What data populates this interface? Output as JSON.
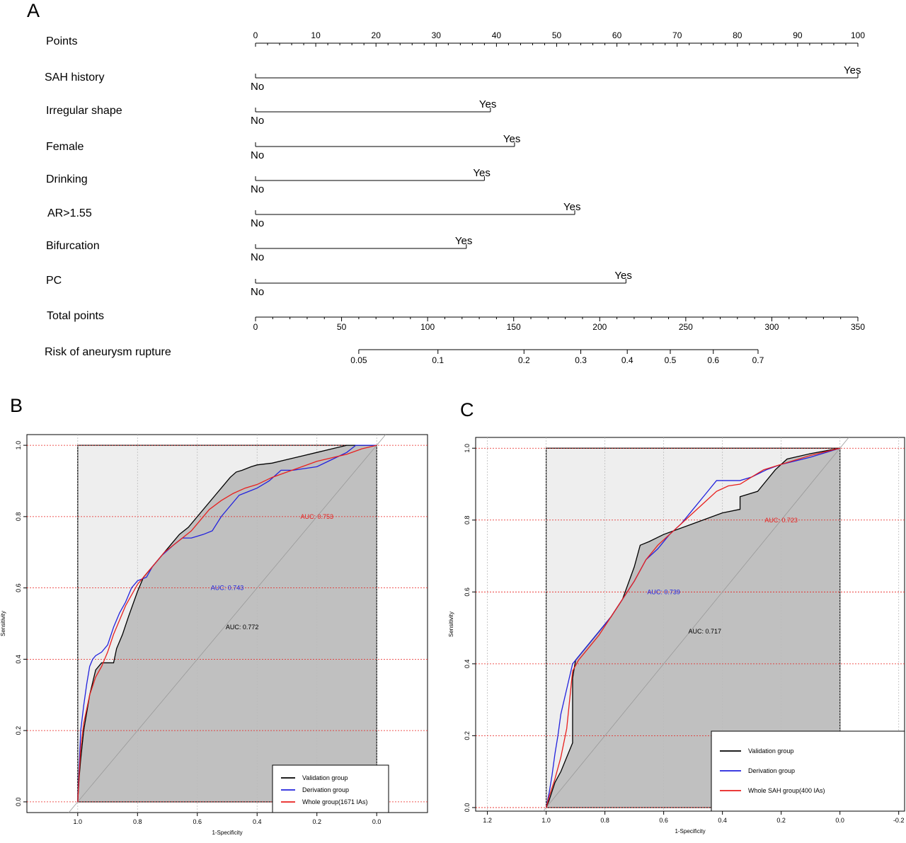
{
  "panels": {
    "a": "A",
    "b": "B",
    "c": "C"
  },
  "nomogram": {
    "points_axis": {
      "label": "Points",
      "min": 0,
      "max": 100,
      "ticks": [
        "0",
        "10",
        "20",
        "30",
        "40",
        "50",
        "60",
        "70",
        "80",
        "90",
        "100"
      ]
    },
    "variables": [
      {
        "label": "SAH history",
        "no": "No",
        "yes": "Yes",
        "points": 100
      },
      {
        "label": "Irregular shape",
        "no": "No",
        "yes": "Yes",
        "points": 39
      },
      {
        "label": "Female",
        "no": "No",
        "yes": "Yes",
        "points": 43
      },
      {
        "label": "Drinking",
        "no": "No",
        "yes": "Yes",
        "points": 38
      },
      {
        "label": "AR>1.55",
        "no": "No",
        "yes": "Yes",
        "points": 53
      },
      {
        "label": "Bifurcation",
        "no": "No",
        "yes": "Yes",
        "points": 35
      },
      {
        "label": "PC",
        "no": "No",
        "yes": "Yes",
        "points": 61.5
      }
    ],
    "total_axis": {
      "label": "Total points",
      "min": 0,
      "max": 350,
      "ticks": [
        "0",
        "50",
        "100",
        "150",
        "200",
        "250",
        "300",
        "350"
      ]
    },
    "risk_axis": {
      "label": "Risk of aneurysm rupture",
      "ticks": [
        {
          "label": "0.05",
          "total": 60
        },
        {
          "label": "0.1",
          "total": 106
        },
        {
          "label": "0.2",
          "total": 156
        },
        {
          "label": "0.3",
          "total": 189
        },
        {
          "label": "0.4",
          "total": 216
        },
        {
          "label": "0.5",
          "total": 241
        },
        {
          "label": "0.6",
          "total": 266
        },
        {
          "label": "0.7",
          "total": 292
        }
      ]
    }
  },
  "chart_data": [
    {
      "type": "line",
      "xlabel": "1-Specificity",
      "ylabel": "Sensitivity",
      "xlim": [
        1.17,
        -0.17
      ],
      "ylim": [
        -0.03,
        1.03
      ],
      "xticks": [
        "1.0",
        "0.8",
        "0.6",
        "0.4",
        "0.2",
        "0.0"
      ],
      "xtick_values": [
        1.0,
        0.8,
        0.6,
        0.4,
        0.2,
        0.0
      ],
      "yticks": [
        "0.0",
        "0.2",
        "0.4",
        "0.6",
        "0.8",
        "1.0"
      ],
      "ytick_values": [
        0.0,
        0.2,
        0.4,
        0.6,
        0.8,
        1.0
      ],
      "grid": true,
      "legend_position": "bottom-right",
      "fill_series": 0,
      "auc_labels": [
        {
          "text": "AUC: 0.753",
          "color": "#e8201e",
          "x": 0.2,
          "y": 0.8
        },
        {
          "text": "AUC: 0.743",
          "color": "#2222dd",
          "x": 0.5,
          "y": 0.6
        },
        {
          "text": "AUC: 0.772",
          "color": "#000000",
          "x": 0.45,
          "y": 0.49
        }
      ],
      "series": [
        {
          "name": "Validation group",
          "color": "#000000",
          "x": [
            1.0,
            0.995,
            0.99,
            0.98,
            0.96,
            0.94,
            0.92,
            0.9,
            0.88,
            0.87,
            0.85,
            0.83,
            0.8,
            0.78,
            0.75,
            0.72,
            0.69,
            0.66,
            0.63,
            0.6,
            0.57,
            0.54,
            0.51,
            0.49,
            0.47,
            0.45,
            0.42,
            0.4,
            0.35,
            0.3,
            0.25,
            0.2,
            0.15,
            0.1,
            0.07,
            0.05,
            0.0
          ],
          "y": [
            0.0,
            0.07,
            0.12,
            0.2,
            0.3,
            0.37,
            0.39,
            0.39,
            0.39,
            0.43,
            0.47,
            0.52,
            0.59,
            0.63,
            0.66,
            0.69,
            0.72,
            0.75,
            0.77,
            0.8,
            0.83,
            0.86,
            0.89,
            0.91,
            0.925,
            0.93,
            0.94,
            0.945,
            0.95,
            0.96,
            0.97,
            0.98,
            0.99,
            1.0,
            1.0,
            1.0,
            1.0
          ]
        },
        {
          "name": "Derivation group",
          "color": "#2222dd",
          "x": [
            1.0,
            0.995,
            0.99,
            0.98,
            0.97,
            0.96,
            0.95,
            0.94,
            0.92,
            0.9,
            0.88,
            0.86,
            0.84,
            0.82,
            0.8,
            0.77,
            0.75,
            0.72,
            0.68,
            0.65,
            0.62,
            0.58,
            0.55,
            0.52,
            0.49,
            0.46,
            0.43,
            0.4,
            0.36,
            0.32,
            0.28,
            0.2,
            0.15,
            0.1,
            0.07,
            0.0
          ],
          "y": [
            0.0,
            0.1,
            0.2,
            0.27,
            0.33,
            0.38,
            0.4,
            0.41,
            0.42,
            0.44,
            0.49,
            0.53,
            0.56,
            0.6,
            0.62,
            0.63,
            0.66,
            0.69,
            0.72,
            0.74,
            0.74,
            0.75,
            0.76,
            0.8,
            0.83,
            0.86,
            0.87,
            0.88,
            0.9,
            0.93,
            0.93,
            0.94,
            0.96,
            0.98,
            1.0,
            1.0
          ]
        },
        {
          "name": "Whole group(1671 IAs)",
          "color": "#e8201e",
          "x": [
            1.0,
            0.995,
            0.99,
            0.98,
            0.96,
            0.94,
            0.92,
            0.9,
            0.88,
            0.86,
            0.84,
            0.82,
            0.8,
            0.77,
            0.74,
            0.71,
            0.68,
            0.65,
            0.62,
            0.59,
            0.56,
            0.52,
            0.48,
            0.44,
            0.4,
            0.35,
            0.3,
            0.25,
            0.2,
            0.15,
            0.1,
            0.05,
            0.0
          ],
          "y": [
            0.0,
            0.08,
            0.15,
            0.22,
            0.3,
            0.35,
            0.38,
            0.42,
            0.47,
            0.51,
            0.55,
            0.58,
            0.61,
            0.64,
            0.67,
            0.7,
            0.72,
            0.74,
            0.76,
            0.79,
            0.82,
            0.845,
            0.865,
            0.88,
            0.89,
            0.91,
            0.925,
            0.94,
            0.955,
            0.965,
            0.975,
            0.99,
            1.0
          ]
        }
      ]
    },
    {
      "type": "line",
      "xlabel": "1-Specificity",
      "ylabel": "Sensitivity",
      "xlim": [
        1.24,
        -0.22
      ],
      "ylim": [
        -0.01,
        1.03
      ],
      "xticks": [
        "1.2",
        "1.0",
        "0.8",
        "0.6",
        "0.4",
        "0.2",
        "0.0",
        "-0.2"
      ],
      "xtick_values": [
        1.2,
        1.0,
        0.8,
        0.6,
        0.4,
        0.2,
        0.0,
        -0.2
      ],
      "yticks": [
        "0.0",
        "0.2",
        "0.4",
        "0.6",
        "0.8",
        "1.0"
      ],
      "ytick_values": [
        0.0,
        0.2,
        0.4,
        0.6,
        0.8,
        1.0
      ],
      "grid": true,
      "legend_position": "bottom-right",
      "fill_series": 0,
      "auc_labels": [
        {
          "text": "AUC: 0.723",
          "color": "#e8201e",
          "x": 0.2,
          "y": 0.8
        },
        {
          "text": "AUC: 0.739",
          "color": "#2222dd",
          "x": 0.6,
          "y": 0.6
        },
        {
          "text": "AUC: 0.717",
          "color": "#000000",
          "x": 0.46,
          "y": 0.49
        }
      ],
      "series": [
        {
          "name": "Validation group",
          "color": "#000000",
          "x": [
            1.0,
            0.99,
            0.97,
            0.95,
            0.91,
            0.91,
            0.9,
            0.86,
            0.82,
            0.78,
            0.74,
            0.7,
            0.69,
            0.68,
            0.65,
            0.6,
            0.5,
            0.4,
            0.34,
            0.34,
            0.28,
            0.26,
            0.22,
            0.18,
            0.1,
            0.0
          ],
          "y": [
            0.0,
            0.02,
            0.07,
            0.1,
            0.18,
            0.36,
            0.41,
            0.45,
            0.49,
            0.53,
            0.58,
            0.67,
            0.7,
            0.73,
            0.74,
            0.76,
            0.79,
            0.82,
            0.83,
            0.865,
            0.88,
            0.9,
            0.94,
            0.97,
            0.985,
            1.0
          ]
        },
        {
          "name": "Derivation group",
          "color": "#2222dd",
          "x": [
            1.0,
            0.99,
            0.98,
            0.97,
            0.96,
            0.95,
            0.93,
            0.91,
            0.89,
            0.86,
            0.82,
            0.78,
            0.74,
            0.7,
            0.66,
            0.62,
            0.58,
            0.54,
            0.5,
            0.46,
            0.42,
            0.38,
            0.34,
            0.3,
            0.25,
            0.2,
            0.1,
            0.0
          ],
          "y": [
            0.0,
            0.04,
            0.09,
            0.15,
            0.2,
            0.26,
            0.33,
            0.4,
            0.42,
            0.45,
            0.49,
            0.53,
            0.58,
            0.63,
            0.69,
            0.72,
            0.76,
            0.79,
            0.83,
            0.87,
            0.91,
            0.91,
            0.91,
            0.92,
            0.94,
            0.955,
            0.975,
            1.0
          ]
        },
        {
          "name": "Whole SAH group(400 IAs)",
          "color": "#e8201e",
          "x": [
            1.0,
            0.99,
            0.97,
            0.95,
            0.93,
            0.91,
            0.89,
            0.86,
            0.82,
            0.78,
            0.74,
            0.7,
            0.66,
            0.62,
            0.58,
            0.54,
            0.5,
            0.46,
            0.42,
            0.38,
            0.34,
            0.3,
            0.26,
            0.22,
            0.18,
            0.1,
            0.0
          ],
          "y": [
            0.0,
            0.03,
            0.08,
            0.14,
            0.22,
            0.38,
            0.41,
            0.44,
            0.48,
            0.53,
            0.58,
            0.63,
            0.69,
            0.73,
            0.76,
            0.79,
            0.82,
            0.85,
            0.88,
            0.895,
            0.9,
            0.92,
            0.94,
            0.95,
            0.96,
            0.98,
            1.0
          ]
        }
      ]
    }
  ]
}
